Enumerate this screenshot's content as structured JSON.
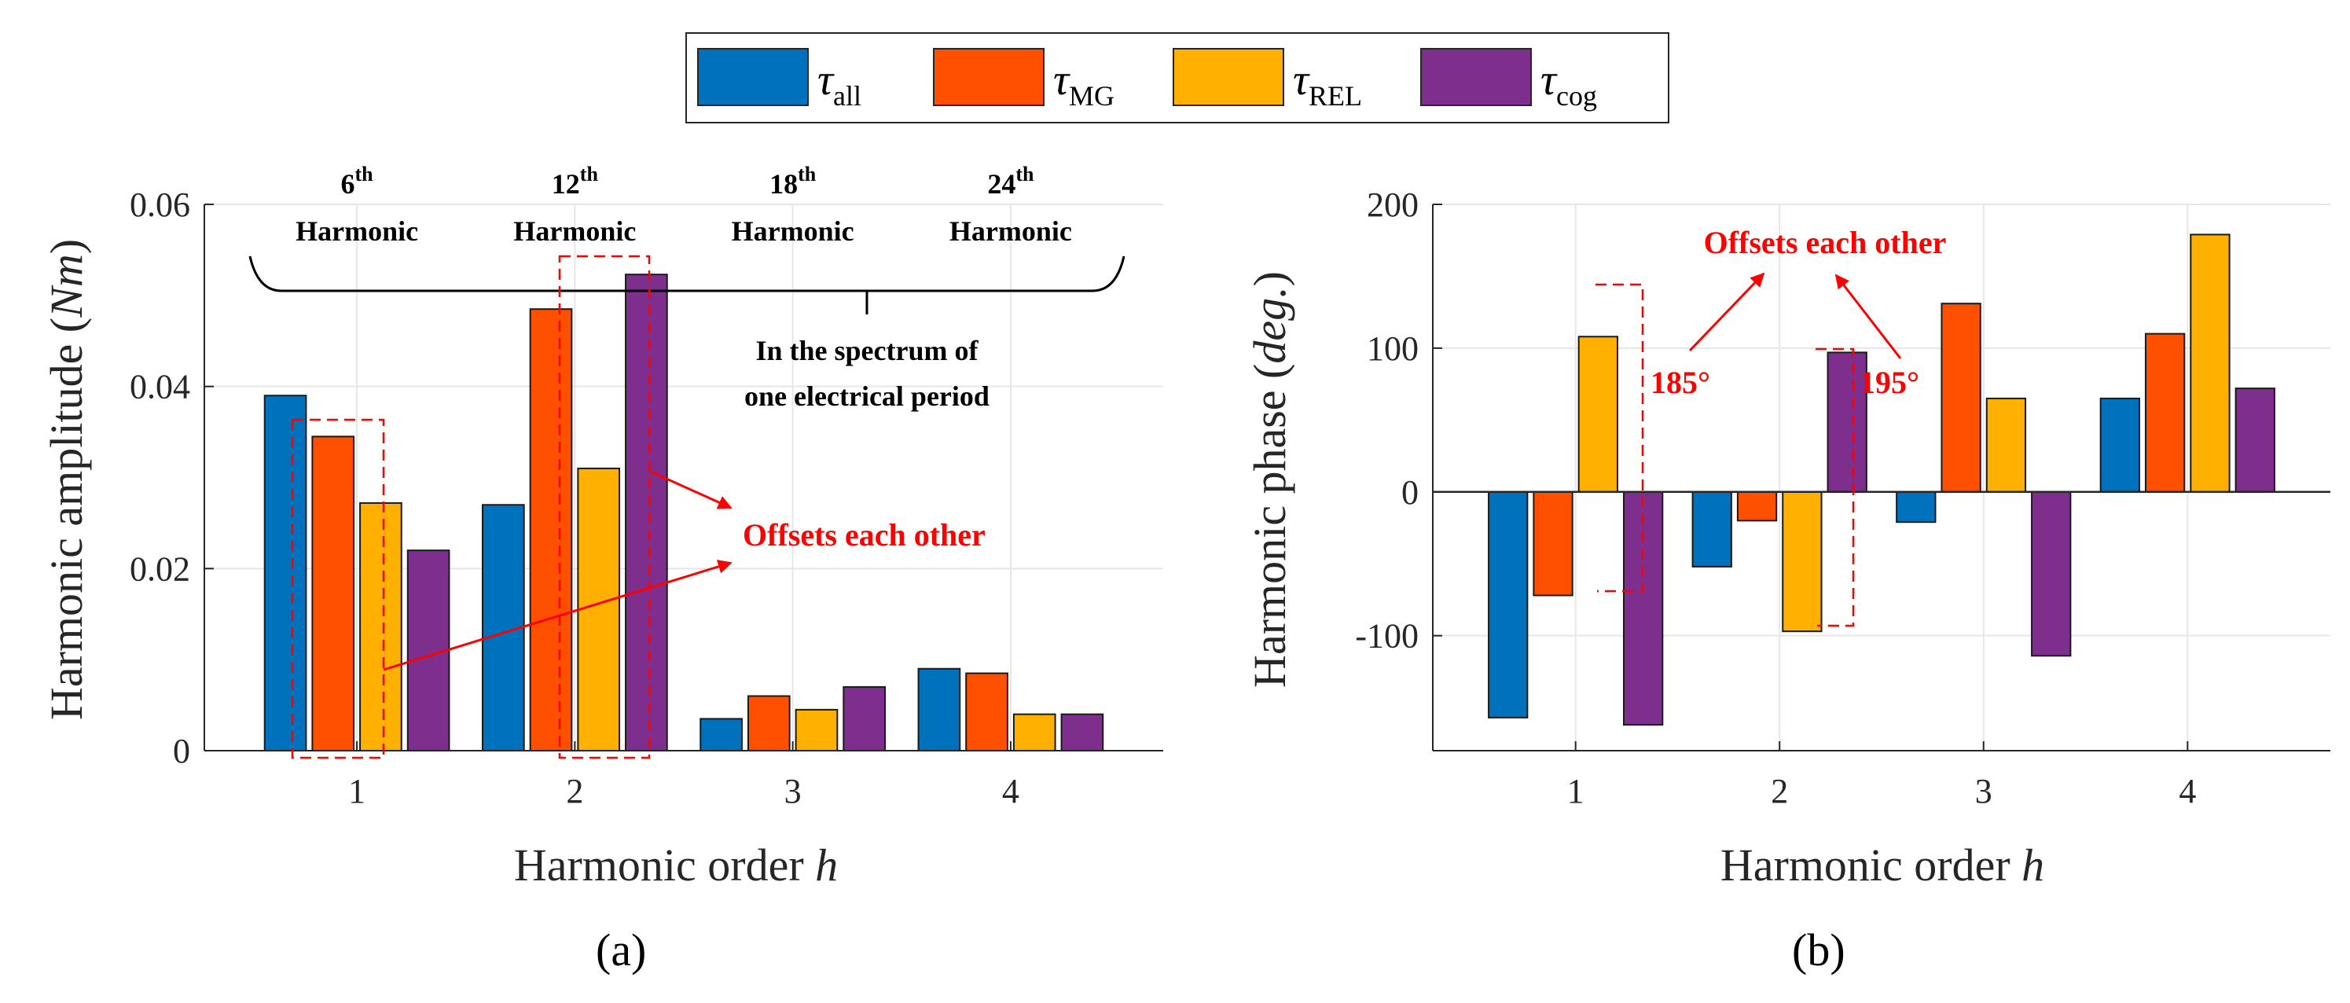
{
  "legend": {
    "entries": [
      {
        "symbol": "τ",
        "sub": "all",
        "color": "#0072BD"
      },
      {
        "symbol": "τ",
        "sub": "MG",
        "color": "#FF5000"
      },
      {
        "symbol": "τ",
        "sub": "REL",
        "color": "#FFB000"
      },
      {
        "symbol": "τ",
        "sub": "cog",
        "color": "#7E2F8E"
      }
    ]
  },
  "chart_data": [
    {
      "type": "bar",
      "panel_label": "(a)",
      "xlabel": "Harmonic order ",
      "xlabel_var": "h",
      "ylabel": "Harmonic amplitude (",
      "ylabel_var": "Nm",
      "ylabel_end": ")",
      "categories": [
        "1",
        "2",
        "3",
        "4"
      ],
      "ylim": [
        0,
        0.06
      ],
      "yticks": [
        "0",
        "0.02",
        "0.04",
        "0.06"
      ],
      "ytick_values": [
        0,
        0.02,
        0.04,
        0.06
      ],
      "series": [
        {
          "name": "τall",
          "values": [
            0.039,
            0.027,
            0.0035,
            0.009
          ]
        },
        {
          "name": "τMG",
          "values": [
            0.0345,
            0.0485,
            0.006,
            0.0085
          ]
        },
        {
          "name": "τREL",
          "values": [
            0.0272,
            0.031,
            0.0045,
            0.004
          ]
        },
        {
          "name": "τcog",
          "values": [
            0.022,
            0.0523,
            0.007,
            0.004
          ]
        }
      ],
      "annotations": {
        "harmonics": [
          {
            "num": "6",
            "sup": "th",
            "word": "Harmonic"
          },
          {
            "num": "12",
            "sup": "th",
            "word": "Harmonic"
          },
          {
            "num": "18",
            "sup": "th",
            "word": "Harmonic"
          },
          {
            "num": "24",
            "sup": "th",
            "word": "Harmonic"
          }
        ],
        "spectrum_line1": "In the spectrum of",
        "spectrum_line2": "one electrical period",
        "offsets": "Offsets each other"
      }
    },
    {
      "type": "bar",
      "panel_label": "(b)",
      "xlabel": "Harmonic order ",
      "xlabel_var": "h",
      "ylabel": "Harmonic phase (",
      "ylabel_var": "deg.",
      "ylabel_end": ")",
      "categories": [
        "1",
        "2",
        "3",
        "4"
      ],
      "ylim": [
        -180,
        200
      ],
      "yticks": [
        "-100",
        "0",
        "100",
        "200"
      ],
      "ytick_values": [
        -100,
        0,
        100,
        200
      ],
      "series": [
        {
          "name": "τall",
          "values": [
            -157,
            -52,
            -21,
            65
          ]
        },
        {
          "name": "τMG",
          "values": [
            -72,
            -20,
            131,
            110
          ]
        },
        {
          "name": "τREL",
          "values": [
            108,
            -97,
            65,
            179
          ]
        },
        {
          "name": "τcog",
          "values": [
            -162,
            97,
            -114,
            72
          ]
        }
      ],
      "annotations": {
        "offsets": "Offsets each other",
        "angle1": "185°",
        "angle2": "195°"
      }
    }
  ]
}
